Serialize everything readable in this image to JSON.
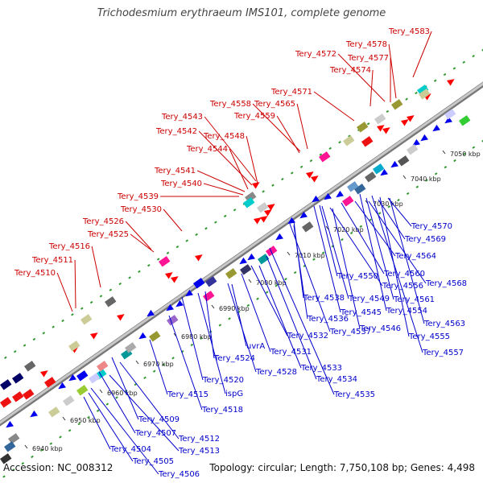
{
  "title": "Trichodesmium erythraeum IMS101, complete genome",
  "footer": {
    "accession": "Accession: NC_008312",
    "summary": "Topology: circular; Length: 7,750,108 bp; Genes: 4,498"
  },
  "kbp_ticks": [
    "6940 kbp",
    "6950 kbp",
    "6960 kbp",
    "6970 kbp",
    "6980 kbp",
    "6990 kbp",
    "7000 kbp",
    "7010 kbp",
    "7020 kbp",
    "7030 kbp",
    "7040 kbp",
    "7050 kbp"
  ],
  "colors": {
    "backbone": "#999999",
    "forward_label": "#cc0000",
    "reverse_label": "#0000cc",
    "forward_gene": "#ff0000",
    "reverse_gene": "#0000ee",
    "dot": "#339933"
  },
  "forward_labels": [
    "Tery_4583",
    "Tery_4578",
    "Tery_4572",
    "Tery_4577",
    "Tery_4574",
    "Tery_4571",
    "Tery_4543",
    "Tery_4558",
    "Tery_4565",
    "Tery_4559",
    "Tery_4542",
    "Tery_4548",
    "Tery_4544",
    "Tery_4541",
    "Tery_4540",
    "Tery_4539",
    "Tery_4530",
    "Tery_4526",
    "Tery_4525",
    "Tery_4516",
    "Tery_4511",
    "Tery_4510"
  ],
  "reverse_labels": [
    "Tery_4570",
    "Tery_4569",
    "Tery_4564",
    "Tery_4560",
    "Tery_4568",
    "Tery_4550",
    "Tery_4556",
    "Tery_4561",
    "Tery_4538",
    "Tery_4549",
    "Tery_4554",
    "Tery_4563",
    "Tery_4545",
    "Tery_4546",
    "Tery_4555",
    "Tery_4536",
    "Tery_4537",
    "Tery_4557",
    "uvrA",
    "Tery_4532",
    "Tery_4531",
    "Tery_4524",
    "Tery_4528",
    "Tery_4533",
    "Tery_4534",
    "Tery_4535",
    "Tery_4520",
    "ispG",
    "Tery_4515",
    "Tery_4518",
    "Tery_4509",
    "Tery_4507",
    "Tery_4512",
    "Tery_4513",
    "Tery_4504",
    "Tery_4505",
    "Tery_4506"
  ]
}
